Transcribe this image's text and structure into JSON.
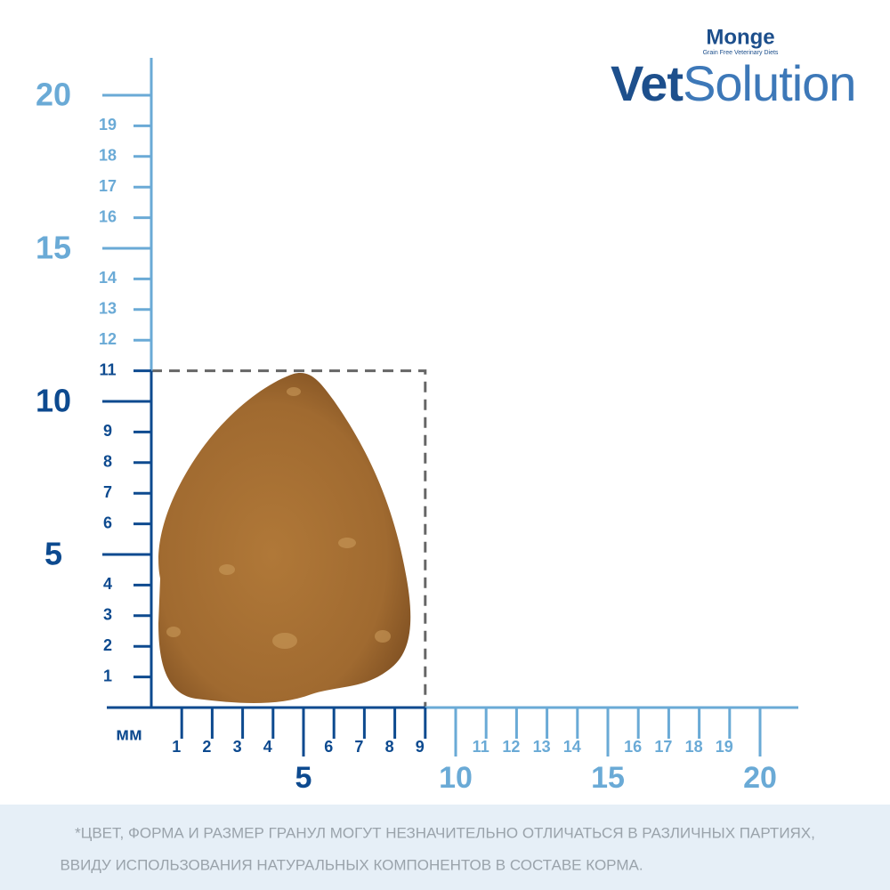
{
  "brand": {
    "name": "Monge",
    "tagline": "Grain Free Veterinary Diets",
    "product_prefix": "Vet",
    "product_suffix": "Solution"
  },
  "ruler": {
    "unit": "мм",
    "y_labels": [
      1,
      2,
      3,
      4,
      5,
      6,
      7,
      8,
      9,
      10,
      11,
      12,
      13,
      14,
      15,
      16,
      17,
      18,
      19,
      20
    ],
    "x_labels": [
      1,
      2,
      3,
      4,
      5,
      6,
      7,
      8,
      9,
      10,
      11,
      12,
      13,
      14,
      15,
      16,
      17,
      18,
      19,
      20
    ],
    "outline": {
      "x": 9,
      "y": 11
    }
  },
  "note": {
    "lines": [
      "*ЦВЕТ, ФОРМА И РАЗМЕР ГРАНУЛ МОГУТ НЕЗНАЧИТЕЛЬНО ОТЛИЧАТЬСЯ В РАЗЛИЧНЫХ ПАРТИЯХ,",
      "ВВИДУ ИСПОЛЬЗОВАНИЯ НАТУРАЛЬНЫХ КОМПОНЕНТОВ В СОСТАВЕ КОРМА."
    ]
  }
}
